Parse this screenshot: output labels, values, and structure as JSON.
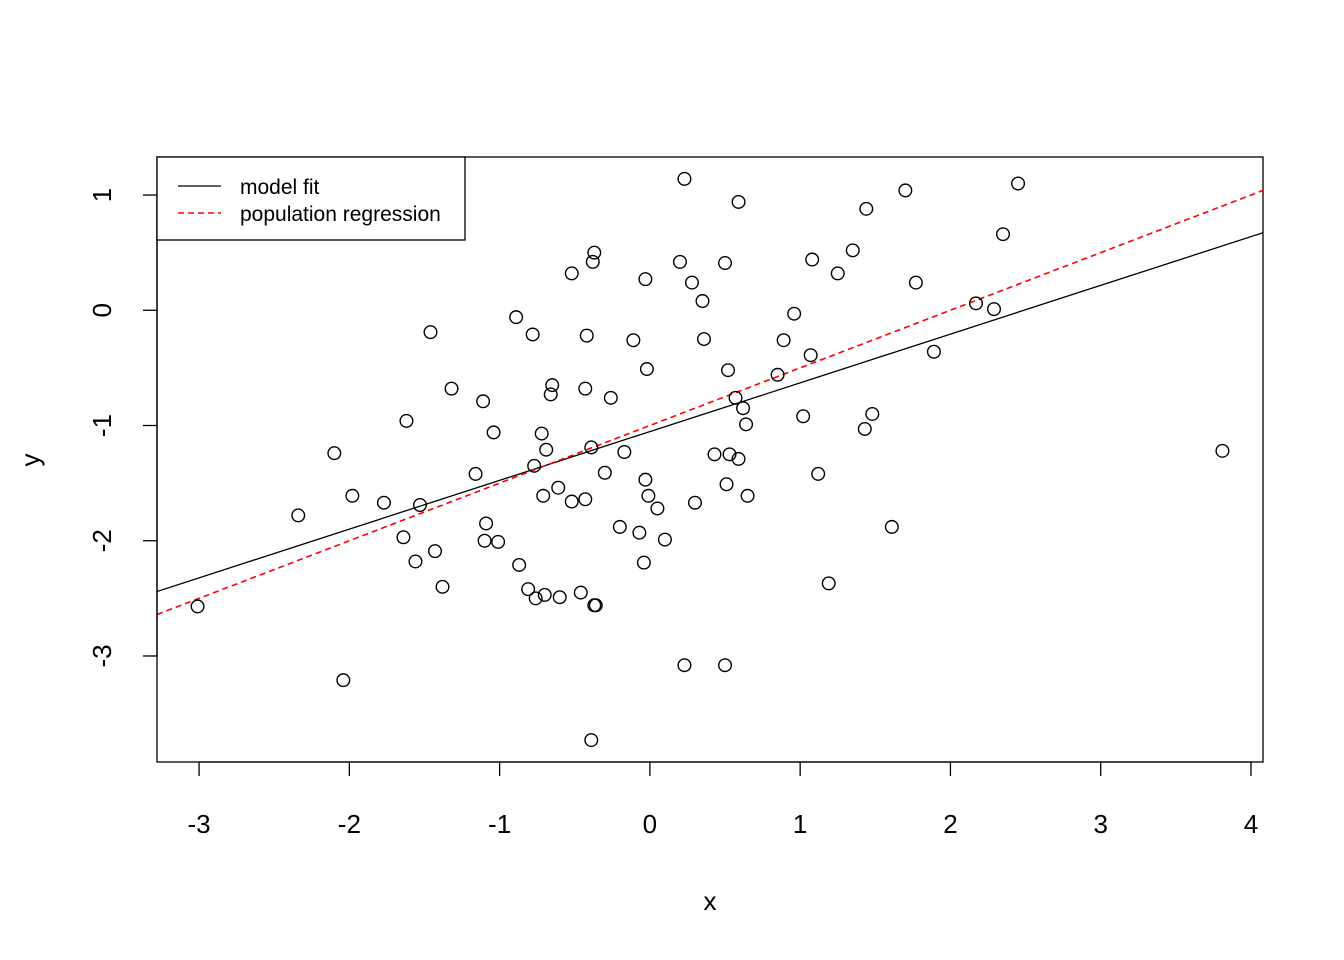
{
  "chart_data": {
    "type": "scatter",
    "title": "",
    "xlabel": "x",
    "ylabel": "y",
    "xlim": [
      -3.28,
      4.08
    ],
    "ylim": [
      -3.92,
      1.33
    ],
    "x_ticks": [
      -3,
      -2,
      -1,
      0,
      1,
      2,
      3,
      4
    ],
    "y_ticks": [
      -3,
      -2,
      -1,
      0,
      1
    ],
    "grid": false,
    "legend_position": "top-left",
    "series": [
      {
        "name": "points",
        "marker": "open-circle",
        "color": "#000000",
        "points": [
          [
            -3.01,
            -2.57
          ],
          [
            -2.34,
            -1.78
          ],
          [
            -2.1,
            -1.24
          ],
          [
            -2.04,
            -3.21
          ],
          [
            -1.98,
            -1.61
          ],
          [
            -1.77,
            -1.67
          ],
          [
            -1.64,
            -1.97
          ],
          [
            -1.62,
            -0.96
          ],
          [
            -1.56,
            -2.18
          ],
          [
            -1.53,
            -1.69
          ],
          [
            -1.46,
            -0.19
          ],
          [
            -1.43,
            -2.09
          ],
          [
            -1.38,
            -2.4
          ],
          [
            -1.32,
            -0.68
          ],
          [
            -1.16,
            -1.42
          ],
          [
            -1.11,
            -0.79
          ],
          [
            -1.1,
            -2.0
          ],
          [
            -1.09,
            -1.85
          ],
          [
            -1.04,
            -1.06
          ],
          [
            -1.01,
            -2.01
          ],
          [
            -0.89,
            -0.06
          ],
          [
            -0.87,
            -2.21
          ],
          [
            -0.81,
            -2.42
          ],
          [
            -0.78,
            -0.21
          ],
          [
            -0.77,
            -1.35
          ],
          [
            -0.76,
            -2.5
          ],
          [
            -0.72,
            -1.07
          ],
          [
            -0.71,
            -1.61
          ],
          [
            -0.7,
            -2.47
          ],
          [
            -0.69,
            -1.21
          ],
          [
            -0.66,
            -0.73
          ],
          [
            -0.65,
            -0.65
          ],
          [
            -0.61,
            -1.54
          ],
          [
            -0.6,
            -2.49
          ],
          [
            -0.52,
            0.32
          ],
          [
            -0.52,
            -1.66
          ],
          [
            -0.46,
            -2.45
          ],
          [
            -0.43,
            -1.64
          ],
          [
            -0.43,
            -0.68
          ],
          [
            -0.42,
            -0.22
          ],
          [
            -0.39,
            -3.73
          ],
          [
            -0.39,
            -1.19
          ],
          [
            -0.38,
            0.42
          ],
          [
            -0.37,
            -2.56
          ],
          [
            -0.37,
            0.5
          ],
          [
            -0.36,
            -2.56
          ],
          [
            -0.3,
            -1.41
          ],
          [
            -0.26,
            -0.76
          ],
          [
            -0.2,
            -1.88
          ],
          [
            -0.17,
            -1.23
          ],
          [
            -0.11,
            -0.26
          ],
          [
            -0.07,
            -1.93
          ],
          [
            -0.04,
            -2.19
          ],
          [
            -0.03,
            -1.47
          ],
          [
            -0.03,
            0.27
          ],
          [
            -0.02,
            -0.51
          ],
          [
            -0.01,
            -1.61
          ],
          [
            0.05,
            -1.72
          ],
          [
            0.1,
            -1.99
          ],
          [
            0.2,
            0.42
          ],
          [
            0.23,
            -3.08
          ],
          [
            0.23,
            1.14
          ],
          [
            0.28,
            0.24
          ],
          [
            0.3,
            -1.67
          ],
          [
            0.35,
            0.08
          ],
          [
            0.36,
            -0.25
          ],
          [
            0.43,
            -1.25
          ],
          [
            0.5,
            0.41
          ],
          [
            0.5,
            -3.08
          ],
          [
            0.51,
            -1.51
          ],
          [
            0.52,
            -0.52
          ],
          [
            0.53,
            -1.25
          ],
          [
            0.57,
            -0.76
          ],
          [
            0.59,
            -1.29
          ],
          [
            0.59,
            0.94
          ],
          [
            0.62,
            -0.85
          ],
          [
            0.64,
            -0.99
          ],
          [
            0.65,
            -1.61
          ],
          [
            0.85,
            -0.56
          ],
          [
            0.89,
            -0.26
          ],
          [
            0.96,
            -0.03
          ],
          [
            1.02,
            -0.92
          ],
          [
            1.07,
            -0.39
          ],
          [
            1.08,
            0.44
          ],
          [
            1.12,
            -1.42
          ],
          [
            1.19,
            -2.37
          ],
          [
            1.25,
            0.32
          ],
          [
            1.35,
            0.52
          ],
          [
            1.43,
            -1.03
          ],
          [
            1.44,
            0.88
          ],
          [
            1.48,
            -0.9
          ],
          [
            1.61,
            -1.88
          ],
          [
            1.7,
            1.04
          ],
          [
            1.77,
            0.24
          ],
          [
            1.89,
            -0.36
          ],
          [
            2.17,
            0.06
          ],
          [
            2.29,
            0.01
          ],
          [
            2.35,
            0.66
          ],
          [
            2.45,
            1.1
          ],
          [
            3.81,
            -1.22
          ]
        ]
      },
      {
        "name": "model fit",
        "line": "solid",
        "color": "#000000",
        "intercept": -1.053,
        "slope": 0.423
      },
      {
        "name": "population regression",
        "line": "dashed",
        "color": "#ff0000",
        "intercept": -1.0,
        "slope": 0.5
      }
    ]
  }
}
